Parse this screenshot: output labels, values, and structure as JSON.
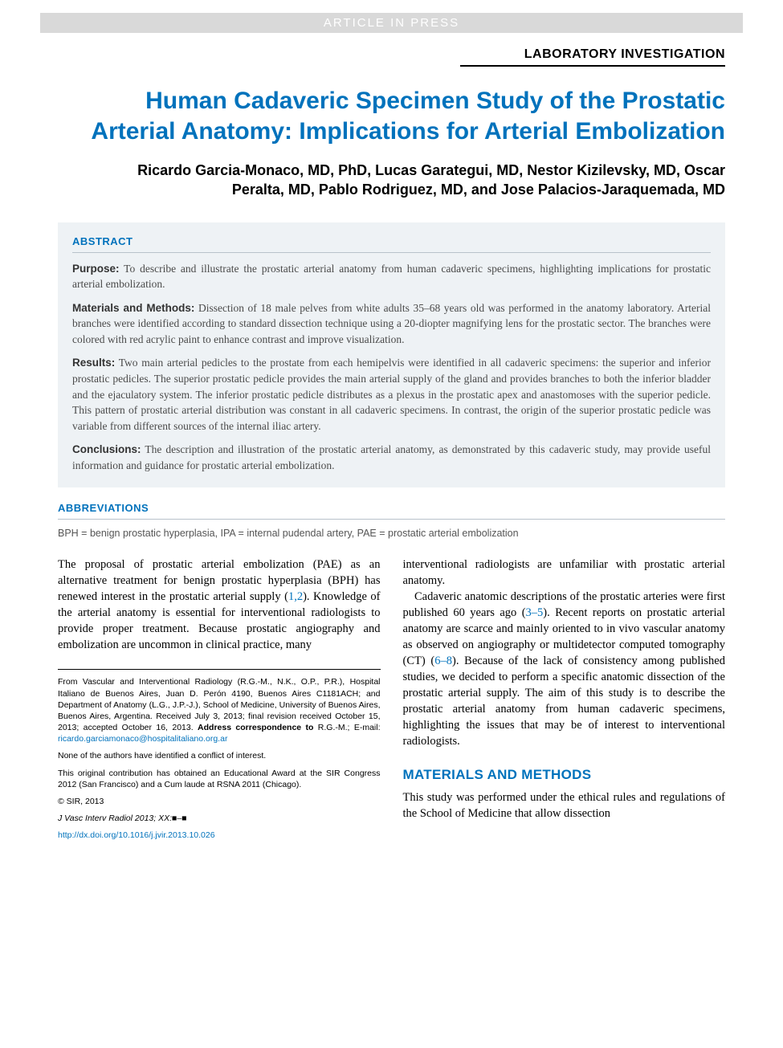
{
  "banner": "ARTICLE IN PRESS",
  "section_label": "LABORATORY INVESTIGATION",
  "title": "Human Cadaveric Specimen Study of the Prostatic Arterial Anatomy: Implications for Arterial Embolization",
  "authors": "Ricardo Garcia-Monaco, MD, PhD, Lucas Garategui, MD, Nestor Kizilevsky, MD, Oscar Peralta, MD, Pablo Rodriguez, MD, and Jose Palacios-Jaraquemada, MD",
  "abstract": {
    "heading": "ABSTRACT",
    "purpose_label": "Purpose:",
    "purpose": "To describe and illustrate the prostatic arterial anatomy from human cadaveric specimens, highlighting implications for prostatic arterial embolization.",
    "methods_label": "Materials and Methods:",
    "methods": "Dissection of 18 male pelves from white adults 35–68 years old was performed in the anatomy laboratory. Arterial branches were identified according to standard dissection technique using a 20-diopter magnifying lens for the prostatic sector. The branches were colored with red acrylic paint to enhance contrast and improve visualization.",
    "results_label": "Results:",
    "results": "Two main arterial pedicles to the prostate from each hemipelvis were identified in all cadaveric specimens: the superior and inferior prostatic pedicles. The superior prostatic pedicle provides the main arterial supply of the gland and provides branches to both the inferior bladder and the ejaculatory system. The inferior prostatic pedicle distributes as a plexus in the prostatic apex and anastomoses with the superior pedicle. This pattern of prostatic arterial distribution was constant in all cadaveric specimens. In contrast, the origin of the superior prostatic pedicle was variable from different sources of the internal iliac artery.",
    "conclusions_label": "Conclusions:",
    "conclusions": "The description and illustration of the prostatic arterial anatomy, as demonstrated by this cadaveric study, may provide useful information and guidance for prostatic arterial embolization."
  },
  "abbreviations": {
    "heading": "ABBREVIATIONS",
    "text": "BPH = benign prostatic hyperplasia, IPA = internal pudendal artery, PAE = prostatic arterial embolization"
  },
  "body": {
    "left_p1_a": "The proposal of prostatic arterial embolization (PAE) as an alternative treatment for benign prostatic hyperplasia (BPH) has renewed interest in the prostatic arterial supply (",
    "left_p1_cite1": "1,2",
    "left_p1_b": "). Knowledge of the arterial anatomy is essential for interventional radiologists to provide proper treatment. Because prostatic angiography and embolization are uncommon in clinical practice, many",
    "right_p1": "interventional radiologists are unfamiliar with prostatic arterial anatomy.",
    "right_p2_a": "Cadaveric anatomic descriptions of the prostatic arteries were first published 60 years ago (",
    "right_p2_cite1": "3–5",
    "right_p2_b": "). Recent reports on prostatic arterial anatomy are scarce and mainly oriented to in vivo vascular anatomy as observed on angiography or multidetector computed tomography (CT) (",
    "right_p2_cite2": "6–8",
    "right_p2_c": "). Because of the lack of consistency among published studies, we decided to perform a specific anatomic dissection of the prostatic arterial supply. The aim of this study is to describe the prostatic arterial anatomy from human cadaveric specimens, highlighting the issues that may be of interest to interventional radiologists.",
    "methods_heading": "MATERIALS AND METHODS",
    "methods_p1": "This study was performed under the ethical rules and regulations of the School of Medicine that allow dissection"
  },
  "footnotes": {
    "affil_a": "From Vascular and Interventional Radiology (R.G.-M., N.K., O.P., P.R.), Hospital Italiano de Buenos Aires, Juan D. Perón 4190, Buenos Aires C1181ACH; and Department of Anatomy (L.G., J.P.-J.), School of Medicine, University of Buenos Aires, Buenos Aires, Argentina. Received July 3, 2013; final revision received October 15, 2013; accepted October 16, 2013. ",
    "affil_bold": "Address correspondence to",
    "affil_b": " R.G.-M.; E-mail: ",
    "email": "ricardo.garciamonaco@hospitalitaliano.org.ar",
    "coi": "None of the authors have identified a conflict of interest.",
    "award": "This original contribution has obtained an Educational Award at the SIR Congress 2012 (San Francisco) and a Cum laude at RSNA 2011 (Chicago).",
    "copyright": "© SIR, 2013",
    "citation": "J Vasc Interv Radiol 2013; XX:■–■",
    "doi": "http://dx.doi.org/10.1016/j.jvir.2013.10.026"
  },
  "colors": {
    "accent": "#0072bc",
    "banner_bg": "#d9d9d9",
    "abstract_bg": "#eef2f5",
    "abstract_text": "#4a4a4a",
    "rule": "#b8c2cb"
  }
}
